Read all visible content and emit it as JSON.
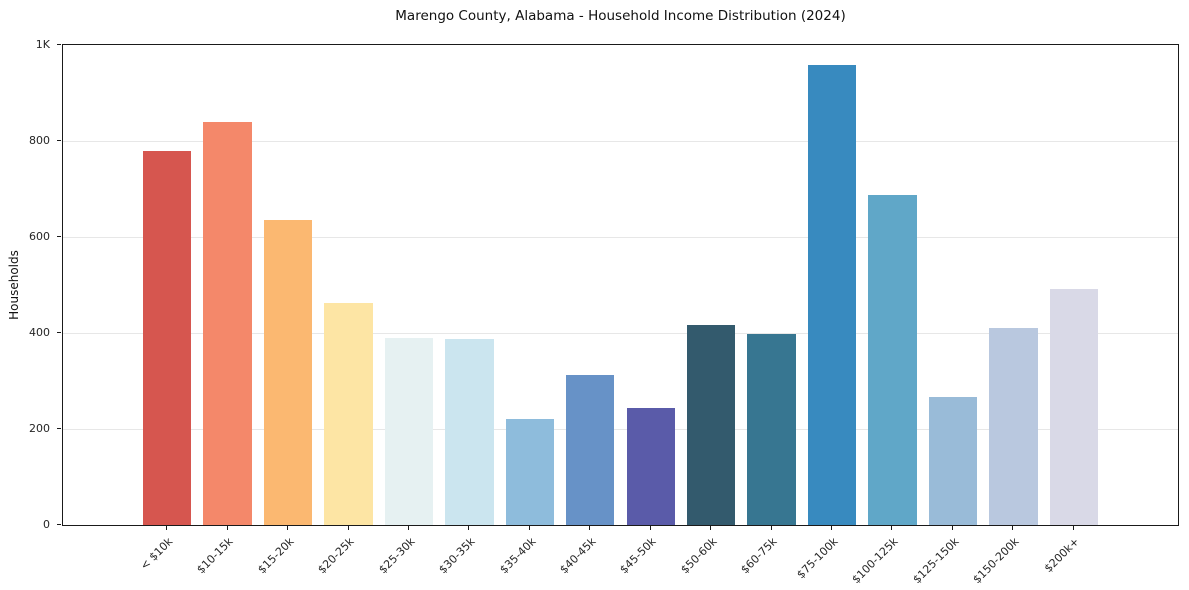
{
  "chart_data": {
    "type": "bar",
    "title": "Marengo County, Alabama - Household Income Distribution (2024)",
    "xlabel": "",
    "ylabel": "Households",
    "ylim": [
      0,
      1000
    ],
    "grid": true,
    "legend_position": "none",
    "yticks": [
      {
        "value": 0,
        "label": "0"
      },
      {
        "value": 200,
        "label": "200"
      },
      {
        "value": 400,
        "label": "400"
      },
      {
        "value": 600,
        "label": "600"
      },
      {
        "value": 800,
        "label": "800"
      },
      {
        "value": 1000,
        "label": "1K"
      }
    ],
    "categories": [
      "< $10k",
      "$10-15k",
      "$15-20k",
      "$20-25k",
      "$25-30k",
      "$30-35k",
      "$35-40k",
      "$40-45k",
      "$45-50k",
      "$50-60k",
      "$60-75k",
      "$75-100k",
      "$100-125k",
      "$125-150k",
      "$150-200k",
      "$200k+"
    ],
    "values": [
      780,
      840,
      635,
      462,
      390,
      387,
      220,
      312,
      243,
      417,
      397,
      958,
      688,
      266,
      410,
      491
    ],
    "bar_colors": [
      "#d6564f",
      "#f4886a",
      "#fbb871",
      "#fde5a4",
      "#e6f1f2",
      "#cbe5ef",
      "#8ebcdc",
      "#6792c7",
      "#5a5ba9",
      "#335a6d",
      "#377691",
      "#388abf",
      "#60a7c8",
      "#99bbd8",
      "#b9c8df",
      "#d9d9e7"
    ]
  }
}
